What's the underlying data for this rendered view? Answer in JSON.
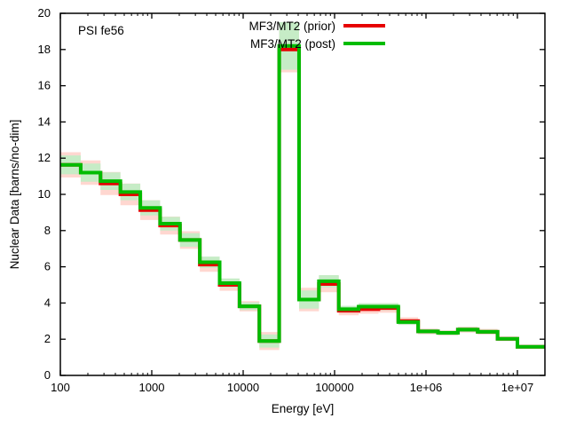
{
  "chart_data": {
    "type": "line",
    "subtype": "step-histogram-with-uncertainty-bands",
    "in_plot_label": "PSI fe56",
    "xlabel": "Energy [eV]",
    "ylabel": "Nuclear Data [barns/no-dim]",
    "x_scale": "log",
    "y_scale": "linear",
    "xlim": [
      100,
      20000000
    ],
    "ylim": [
      0,
      20
    ],
    "grid": "off",
    "legend_position": "top-center-inside",
    "x_ticks": [
      {
        "value": 100,
        "label": "100"
      },
      {
        "value": 1000,
        "label": "1000"
      },
      {
        "value": 10000,
        "label": "10000"
      },
      {
        "value": 100000,
        "label": "100000"
      },
      {
        "value": 1000000,
        "label": "1e+06"
      },
      {
        "value": 10000000,
        "label": "1e+07"
      }
    ],
    "y_ticks": [
      {
        "value": 0,
        "label": "0"
      },
      {
        "value": 2,
        "label": "2"
      },
      {
        "value": 4,
        "label": "4"
      },
      {
        "value": 6,
        "label": "6"
      },
      {
        "value": 8,
        "label": "8"
      },
      {
        "value": 10,
        "label": "10"
      },
      {
        "value": 12,
        "label": "12"
      },
      {
        "value": 14,
        "label": "14"
      },
      {
        "value": 16,
        "label": "16"
      },
      {
        "value": 18,
        "label": "18"
      },
      {
        "value": 20,
        "label": "20"
      }
    ],
    "group_boundaries_eV": [
      100,
      167,
      275,
      454,
      749,
      1234,
      2035,
      3355,
      5531,
      9119,
      15034,
      24788,
      40868,
      67380,
      111090,
      183156,
      301974,
      497871,
      820850,
      1353353,
      2231302,
      3678794,
      6065307,
      10000000,
      20000000
    ],
    "series": [
      {
        "name": "MF3/MT2 (prior)",
        "color": "#e60000",
        "band_color": "#ffd7d0",
        "values": [
          11.63,
          11.2,
          10.6,
          10.0,
          9.13,
          8.28,
          7.48,
          6.12,
          5.0,
          3.82,
          1.9,
          18.0,
          4.19,
          5.05,
          3.57,
          3.66,
          3.72,
          3.0,
          2.43,
          2.35,
          2.53,
          2.41,
          2.02,
          1.58
        ],
        "unc_frac": [
          0.06,
          0.06,
          0.06,
          0.06,
          0.06,
          0.06,
          0.065,
          0.065,
          0.065,
          0.075,
          0.26,
          0.07,
          0.155,
          0.09,
          0.07,
          0.07,
          0.07,
          0.07,
          0.065,
          0.065,
          0.065,
          0.065,
          0.06,
          0.06
        ]
      },
      {
        "name": "MF3/MT2 (post)",
        "color": "#00bc00",
        "band_color": "#c6ecc6",
        "values": [
          11.63,
          11.2,
          10.73,
          10.13,
          9.25,
          8.38,
          7.48,
          6.25,
          5.1,
          3.82,
          1.9,
          18.2,
          4.19,
          5.2,
          3.66,
          3.8,
          3.8,
          2.95,
          2.43,
          2.35,
          2.53,
          2.41,
          2.02,
          1.58
        ],
        "unc_frac": [
          0.045,
          0.045,
          0.045,
          0.045,
          0.045,
          0.045,
          0.05,
          0.05,
          0.05,
          0.055,
          0.19,
          0.072,
          0.12,
          0.065,
          0.05,
          0.05,
          0.05,
          0.05,
          0.05,
          0.05,
          0.05,
          0.05,
          0.045,
          0.045
        ]
      }
    ],
    "axis_color": "#000000",
    "background_color": "#ffffff"
  }
}
